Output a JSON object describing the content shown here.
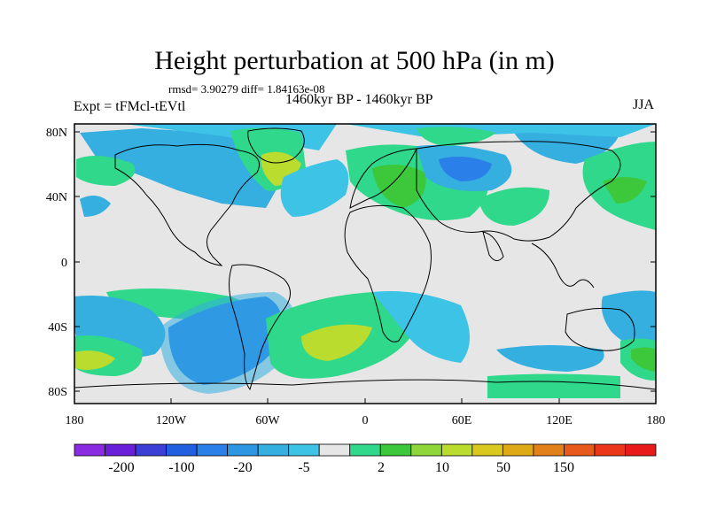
{
  "title": "Height perturbation at 500 hPa (in m)",
  "stats_line": "rmsd= 3.90279  diff= 1.84163e-08",
  "experiment_label": "Expt = tFMcl-tEVtl",
  "period_label": "1460kyr BP - 1460kyr BP",
  "season_label": "JJA",
  "lat_ticks": [
    "80N",
    "40N",
    "0",
    "40S",
    "80S"
  ],
  "lon_ticks": [
    "180",
    "120W",
    "60W",
    "0",
    "60E",
    "120E",
    "180"
  ],
  "colorbar": {
    "colors": [
      "#8a2be2",
      "#6a1fd8",
      "#3b3fd6",
      "#1f5fe0",
      "#2a7fe8",
      "#2c96e3",
      "#35aee0",
      "#3cc3e6",
      "#e6e6e6",
      "#2fd88a",
      "#3cc83a",
      "#8fd63a",
      "#b9dc2e",
      "#d9c81e",
      "#dfa815",
      "#e2801a",
      "#e85a1c",
      "#ec361a",
      "#e81a1a"
    ],
    "labels": [
      "-200",
      "-100",
      "-20",
      "-5",
      "2",
      "10",
      "50",
      "150"
    ]
  },
  "colors": {
    "land_outline": "#000000",
    "background_field": "#e6e6e6"
  }
}
